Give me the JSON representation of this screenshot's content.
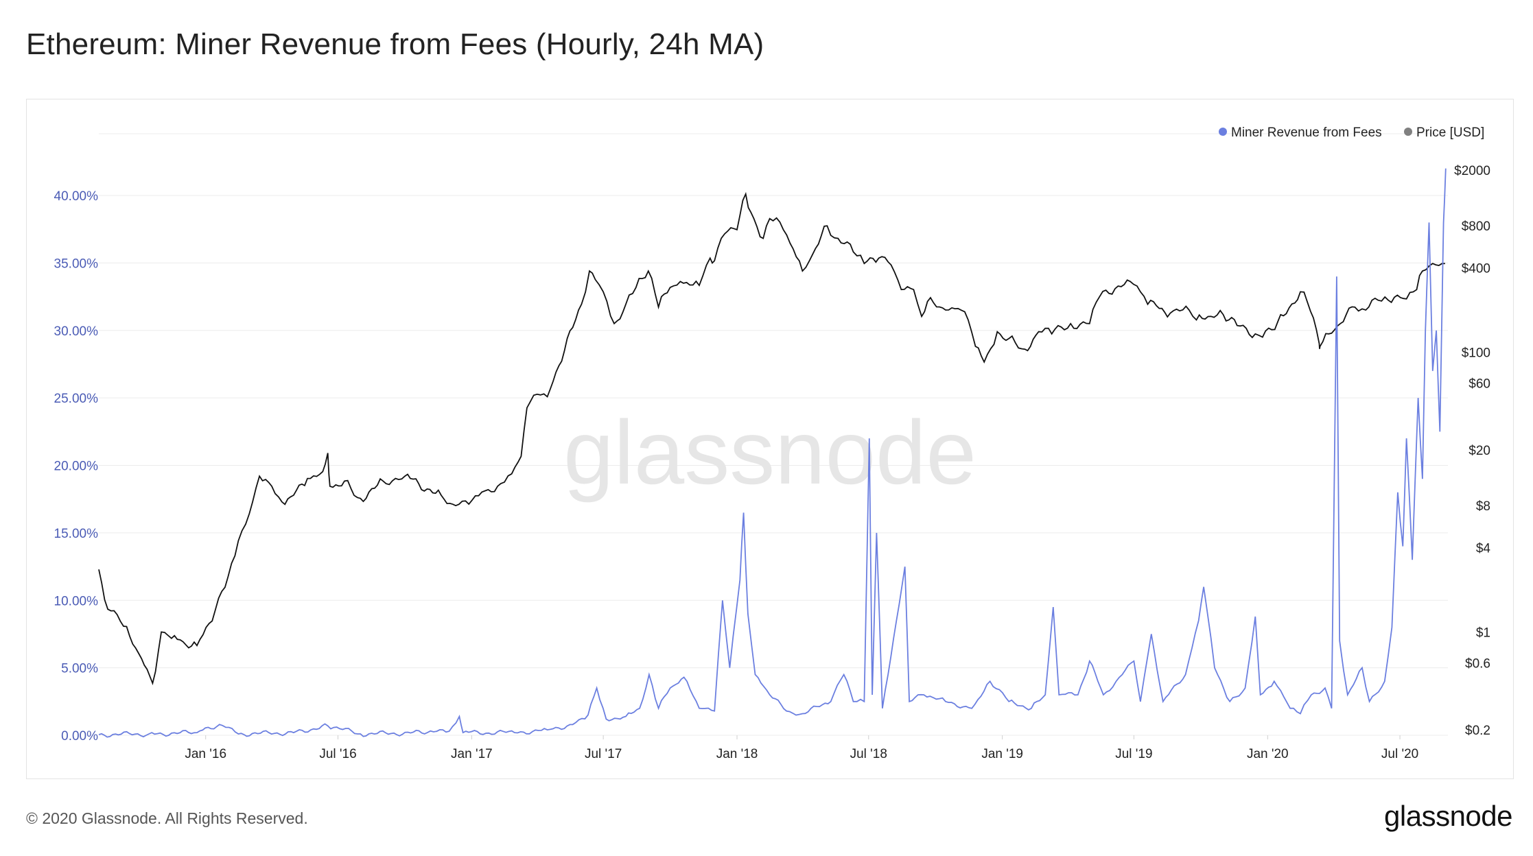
{
  "title": "Ethereum: Miner Revenue from Fees (Hourly, 24h MA)",
  "footer": {
    "copyright": "© 2020 Glassnode. All Rights Reserved.",
    "logo": "glassnode"
  },
  "watermark": "glassnode",
  "colors": {
    "fees": "#6b7fe0",
    "price": "#111111",
    "grid": "#ececec",
    "left_axis_text": "#4a5bb5",
    "right_axis_text": "#222222"
  },
  "chart_data": {
    "type": "line",
    "legend": {
      "position": "top-right",
      "entries": [
        {
          "name": "Miner Revenue from Fees",
          "color": "#6b7fe0"
        },
        {
          "name": "Price [USD]",
          "color": "#808080"
        }
      ]
    },
    "x_tick_labels": [
      "Jan '16",
      "Jul '16",
      "Jan '17",
      "Jul '17",
      "Jan '18",
      "Jul '18",
      "Jan '19",
      "Jul '19",
      "Jan '20",
      "Jul '20"
    ],
    "x_tick_dates": [
      "2016-01-01",
      "2016-07-01",
      "2017-01-01",
      "2017-07-01",
      "2018-01-01",
      "2018-07-01",
      "2019-01-01",
      "2019-07-01",
      "2020-01-01",
      "2020-07-01"
    ],
    "xlim": [
      "2015-08-07",
      "2020-09-05"
    ],
    "y_left": {
      "ylim": [
        0,
        45
      ],
      "tick_values": [
        0,
        5,
        10,
        15,
        20,
        25,
        30,
        35,
        40
      ],
      "tick_labels": [
        "0.00%",
        "5.00%",
        "10.00%",
        "15.00%",
        "20.00%",
        "25.00%",
        "30.00%",
        "35.00%",
        "40.00%"
      ]
    },
    "y_right": {
      "scale": "log",
      "tick_values": [
        0.2,
        0.6,
        1,
        4,
        8,
        20,
        60,
        100,
        400,
        800,
        2000
      ],
      "tick_labels": [
        "$0.2",
        "$0.6",
        "$1",
        "$4",
        "$8",
        "$20",
        "$60",
        "$100",
        "$400",
        "$800",
        "$2000"
      ]
    },
    "series": [
      {
        "name": "Miner Revenue from Fees",
        "axis": "left",
        "unit": "%",
        "points": [
          [
            "2015-08-07",
            0.05
          ],
          [
            "2015-10-15",
            0.1
          ],
          [
            "2015-12-20",
            0.2
          ],
          [
            "2016-01-20",
            0.8
          ],
          [
            "2016-02-15",
            0.1
          ],
          [
            "2016-05-01",
            0.2
          ],
          [
            "2016-06-17",
            0.7
          ],
          [
            "2016-08-01",
            0.1
          ],
          [
            "2016-11-01",
            0.2
          ],
          [
            "2016-12-01",
            0.3
          ],
          [
            "2016-12-15",
            1.4
          ],
          [
            "2016-12-20",
            0.2
          ],
          [
            "2017-03-01",
            0.2
          ],
          [
            "2017-04-15",
            0.4
          ],
          [
            "2017-05-20",
            0.8
          ],
          [
            "2017-06-10",
            1.5
          ],
          [
            "2017-06-22",
            3.5
          ],
          [
            "2017-07-05",
            1.2
          ],
          [
            "2017-08-01",
            1.4
          ],
          [
            "2017-08-20",
            2.0
          ],
          [
            "2017-09-02",
            4.5
          ],
          [
            "2017-09-15",
            2.0
          ],
          [
            "2017-10-01",
            3.5
          ],
          [
            "2017-10-20",
            4.3
          ],
          [
            "2017-11-10",
            2.0
          ],
          [
            "2017-12-01",
            1.8
          ],
          [
            "2017-12-12",
            10.0
          ],
          [
            "2017-12-22",
            5.0
          ],
          [
            "2018-01-05",
            11.5
          ],
          [
            "2018-01-10",
            16.5
          ],
          [
            "2018-01-16",
            9.0
          ],
          [
            "2018-01-26",
            4.5
          ],
          [
            "2018-02-15",
            3.0
          ],
          [
            "2018-03-10",
            1.8
          ],
          [
            "2018-04-01",
            1.6
          ],
          [
            "2018-05-10",
            2.5
          ],
          [
            "2018-05-28",
            4.5
          ],
          [
            "2018-06-10",
            2.5
          ],
          [
            "2018-06-25",
            2.5
          ],
          [
            "2018-07-02",
            22.0
          ],
          [
            "2018-07-06",
            3.0
          ],
          [
            "2018-07-12",
            15.0
          ],
          [
            "2018-07-20",
            2.0
          ],
          [
            "2018-08-20",
            12.5
          ],
          [
            "2018-08-26",
            2.5
          ],
          [
            "2018-09-15",
            3.0
          ],
          [
            "2018-10-15",
            2.5
          ],
          [
            "2018-11-20",
            2.0
          ],
          [
            "2018-12-15",
            4.0
          ],
          [
            "2019-01-10",
            2.5
          ],
          [
            "2019-02-10",
            2.0
          ],
          [
            "2019-03-01",
            3.0
          ],
          [
            "2019-03-12",
            9.5
          ],
          [
            "2019-03-20",
            3.0
          ],
          [
            "2019-04-15",
            3.0
          ],
          [
            "2019-05-01",
            5.5
          ],
          [
            "2019-05-20",
            3.0
          ],
          [
            "2019-06-15",
            4.5
          ],
          [
            "2019-07-01",
            5.5
          ],
          [
            "2019-07-10",
            2.5
          ],
          [
            "2019-07-25",
            7.5
          ],
          [
            "2019-08-10",
            2.5
          ],
          [
            "2019-09-10",
            4.5
          ],
          [
            "2019-09-28",
            8.5
          ],
          [
            "2019-10-05",
            11.0
          ],
          [
            "2019-10-20",
            5.0
          ],
          [
            "2019-11-10",
            2.5
          ],
          [
            "2019-12-01",
            3.5
          ],
          [
            "2019-12-15",
            8.8
          ],
          [
            "2019-12-22",
            3.0
          ],
          [
            "2020-01-10",
            4.0
          ],
          [
            "2020-02-01",
            2.0
          ],
          [
            "2020-02-15",
            1.6
          ],
          [
            "2020-03-01",
            3.0
          ],
          [
            "2020-03-20",
            3.5
          ],
          [
            "2020-03-29",
            2.0
          ],
          [
            "2020-04-05",
            34.0
          ],
          [
            "2020-04-09",
            7.0
          ],
          [
            "2020-04-20",
            3.0
          ],
          [
            "2020-05-10",
            5.0
          ],
          [
            "2020-05-20",
            2.5
          ],
          [
            "2020-06-10",
            4.0
          ],
          [
            "2020-06-20",
            8.0
          ],
          [
            "2020-06-28",
            18.0
          ],
          [
            "2020-07-05",
            14.0
          ],
          [
            "2020-07-10",
            22.0
          ],
          [
            "2020-07-18",
            13.0
          ],
          [
            "2020-07-26",
            25.0
          ],
          [
            "2020-08-01",
            19.0
          ],
          [
            "2020-08-05",
            30.0
          ],
          [
            "2020-08-10",
            38.0
          ],
          [
            "2020-08-15",
            27.0
          ],
          [
            "2020-08-20",
            30.0
          ],
          [
            "2020-08-25",
            22.5
          ],
          [
            "2020-08-30",
            38.0
          ],
          [
            "2020-09-02",
            42.0
          ]
        ]
      },
      {
        "name": "Price [USD]",
        "axis": "right",
        "unit": "USD",
        "points": [
          [
            "2015-08-07",
            2.8
          ],
          [
            "2015-08-15",
            1.7
          ],
          [
            "2015-09-10",
            1.1
          ],
          [
            "2015-10-01",
            0.7
          ],
          [
            "2015-10-20",
            0.43
          ],
          [
            "2015-11-01",
            1.0
          ],
          [
            "2015-11-15",
            0.9
          ],
          [
            "2015-12-01",
            0.85
          ],
          [
            "2015-12-20",
            0.8
          ],
          [
            "2016-01-10",
            1.2
          ],
          [
            "2016-02-01",
            2.5
          ],
          [
            "2016-02-15",
            4.5
          ],
          [
            "2016-03-01",
            7.0
          ],
          [
            "2016-03-15",
            13.0
          ],
          [
            "2016-04-01",
            11.0
          ],
          [
            "2016-04-15",
            8.5
          ],
          [
            "2016-05-01",
            9.5
          ],
          [
            "2016-05-20",
            12.5
          ],
          [
            "2016-06-10",
            14.0
          ],
          [
            "2016-06-17",
            19.0
          ],
          [
            "2016-06-20",
            11.0
          ],
          [
            "2016-07-10",
            12.0
          ],
          [
            "2016-08-01",
            9.0
          ],
          [
            "2016-09-01",
            12.0
          ],
          [
            "2016-10-01",
            13.0
          ],
          [
            "2016-10-20",
            11.5
          ],
          [
            "2016-11-20",
            9.5
          ],
          [
            "2016-12-10",
            8.0
          ],
          [
            "2016-12-28",
            8.2
          ],
          [
            "2017-01-15",
            10.0
          ],
          [
            "2017-02-10",
            11.5
          ],
          [
            "2017-02-25",
            13.5
          ],
          [
            "2017-03-10",
            18.0
          ],
          [
            "2017-03-18",
            40.0
          ],
          [
            "2017-04-01",
            50.0
          ],
          [
            "2017-04-15",
            48.0
          ],
          [
            "2017-05-01",
            80.0
          ],
          [
            "2017-05-20",
            150.0
          ],
          [
            "2017-06-01",
            220.0
          ],
          [
            "2017-06-12",
            380.0
          ],
          [
            "2017-06-20",
            330.0
          ],
          [
            "2017-07-01",
            270.0
          ],
          [
            "2017-07-16",
            160.0
          ],
          [
            "2017-08-01",
            220.0
          ],
          [
            "2017-08-15",
            290.0
          ],
          [
            "2017-09-01",
            380.0
          ],
          [
            "2017-09-15",
            210.0
          ],
          [
            "2017-10-01",
            290.0
          ],
          [
            "2017-10-15",
            320.0
          ],
          [
            "2017-11-10",
            300.0
          ],
          [
            "2017-11-25",
            470.0
          ],
          [
            "2017-12-01",
            450.0
          ],
          [
            "2017-12-15",
            700.0
          ],
          [
            "2018-01-01",
            750.0
          ],
          [
            "2018-01-13",
            1350.0
          ],
          [
            "2018-01-20",
            1000.0
          ],
          [
            "2018-02-06",
            650.0
          ],
          [
            "2018-02-15",
            900.0
          ],
          [
            "2018-03-01",
            850.0
          ],
          [
            "2018-03-15",
            600.0
          ],
          [
            "2018-04-01",
            380.0
          ],
          [
            "2018-04-15",
            500.0
          ],
          [
            "2018-05-05",
            800.0
          ],
          [
            "2018-05-20",
            650.0
          ],
          [
            "2018-06-10",
            520.0
          ],
          [
            "2018-06-25",
            430.0
          ],
          [
            "2018-07-15",
            470.0
          ],
          [
            "2018-08-01",
            420.0
          ],
          [
            "2018-08-15",
            280.0
          ],
          [
            "2018-09-01",
            280.0
          ],
          [
            "2018-09-12",
            180.0
          ],
          [
            "2018-09-20",
            230.0
          ],
          [
            "2018-10-15",
            200.0
          ],
          [
            "2018-11-01",
            205.0
          ],
          [
            "2018-11-15",
            170.0
          ],
          [
            "2018-11-25",
            110.0
          ],
          [
            "2018-12-07",
            85.0
          ],
          [
            "2018-12-25",
            140.0
          ],
          [
            "2019-01-10",
            125.0
          ],
          [
            "2019-02-01",
            105.0
          ],
          [
            "2019-02-20",
            140.0
          ],
          [
            "2019-03-10",
            135.0
          ],
          [
            "2019-04-05",
            160.0
          ],
          [
            "2019-05-01",
            160.0
          ],
          [
            "2019-05-15",
            250.0
          ],
          [
            "2019-06-01",
            260.0
          ],
          [
            "2019-06-26",
            320.0
          ],
          [
            "2019-07-10",
            270.0
          ],
          [
            "2019-07-20",
            220.0
          ],
          [
            "2019-08-01",
            215.0
          ],
          [
            "2019-08-20",
            190.0
          ],
          [
            "2019-09-15",
            200.0
          ],
          [
            "2019-09-25",
            170.0
          ],
          [
            "2019-10-15",
            180.0
          ],
          [
            "2019-11-01",
            185.0
          ],
          [
            "2019-11-20",
            155.0
          ],
          [
            "2019-12-15",
            135.0
          ],
          [
            "2019-12-25",
            128.0
          ],
          [
            "2020-01-15",
            165.0
          ],
          [
            "2020-02-15",
            270.0
          ],
          [
            "2020-02-25",
            225.0
          ],
          [
            "2020-03-12",
            115.0
          ],
          [
            "2020-03-13",
            110.0
          ],
          [
            "2020-03-25",
            135.0
          ],
          [
            "2020-04-10",
            160.0
          ],
          [
            "2020-04-30",
            210.0
          ],
          [
            "2020-05-15",
            200.0
          ],
          [
            "2020-06-01",
            235.0
          ],
          [
            "2020-06-15",
            235.0
          ],
          [
            "2020-07-10",
            240.0
          ],
          [
            "2020-07-24",
            280.0
          ],
          [
            "2020-08-01",
            380.0
          ],
          [
            "2020-08-15",
            430.0
          ],
          [
            "2020-09-01",
            430.0
          ]
        ]
      }
    ]
  }
}
